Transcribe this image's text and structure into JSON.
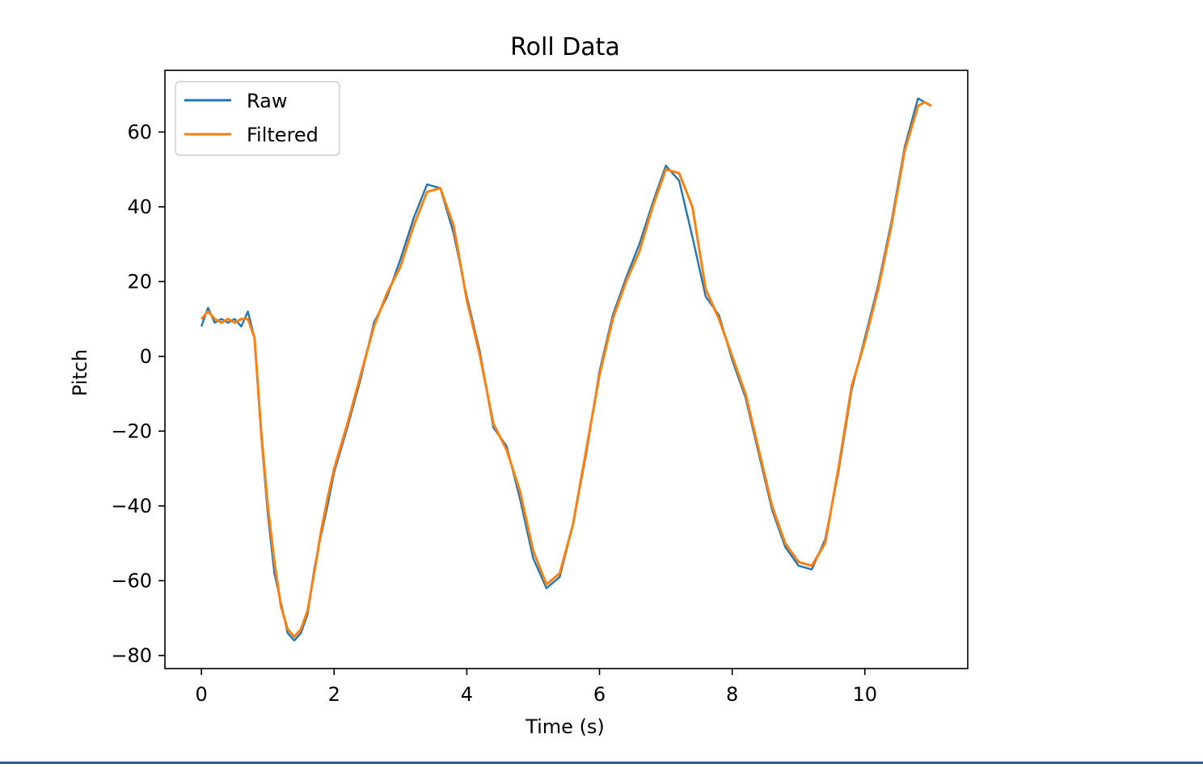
{
  "chart_data": {
    "type": "line",
    "title": "Roll Data",
    "xlabel": "Time (s)",
    "ylabel": "Pitch",
    "xlim": [
      -0.55,
      11.55
    ],
    "ylim": [
      -83.5,
      76.5
    ],
    "xticks": [
      0,
      2,
      4,
      6,
      8,
      10
    ],
    "yticks": [
      -80,
      -60,
      -40,
      -20,
      0,
      20,
      40,
      60
    ],
    "legend_position": "top-left",
    "grid": false,
    "series": [
      {
        "name": "Raw",
        "color": "#1f77b4"
      },
      {
        "name": "Filtered",
        "color": "#ff7f0e"
      }
    ],
    "x": [
      0.0,
      0.1,
      0.2,
      0.3,
      0.4,
      0.5,
      0.6,
      0.7,
      0.8,
      0.9,
      1.0,
      1.1,
      1.2,
      1.3,
      1.4,
      1.5,
      1.6,
      1.7,
      1.8,
      1.9,
      2.0,
      2.2,
      2.4,
      2.6,
      2.8,
      3.0,
      3.2,
      3.4,
      3.6,
      3.8,
      4.0,
      4.2,
      4.4,
      4.6,
      4.8,
      5.0,
      5.2,
      5.4,
      5.6,
      5.8,
      6.0,
      6.2,
      6.4,
      6.6,
      6.8,
      7.0,
      7.2,
      7.4,
      7.6,
      7.8,
      8.0,
      8.2,
      8.4,
      8.6,
      8.8,
      9.0,
      9.2,
      9.4,
      9.6,
      9.8,
      10.0,
      10.2,
      10.4,
      10.6,
      10.8,
      10.9,
      11.0
    ],
    "filtered": [
      10,
      12,
      10,
      9,
      10,
      9,
      10,
      10,
      5,
      -20,
      -40,
      -55,
      -67,
      -73,
      -75,
      -73,
      -68,
      -58,
      -47,
      -38,
      -30,
      -18,
      -5,
      8,
      17,
      24,
      35,
      44,
      45,
      35,
      15,
      0,
      -18,
      -25,
      -36,
      -52,
      -61,
      -58,
      -45,
      -25,
      -5,
      10,
      20,
      28,
      40,
      50,
      49,
      40,
      18,
      10,
      0,
      -10,
      -25,
      -40,
      -50,
      -55,
      -56,
      -50,
      -30,
      -8,
      4,
      18,
      35,
      55,
      67,
      68,
      67
    ],
    "raw": [
      8,
      13,
      9,
      10,
      9,
      10,
      8,
      12,
      5,
      -21,
      -42,
      -58,
      -66,
      -74,
      -76,
      -74,
      -69,
      -57,
      -48,
      -40,
      -31,
      -19,
      -6,
      9,
      16,
      26,
      37,
      46,
      45,
      33,
      16,
      1,
      -19,
      -24,
      -38,
      -54,
      -62,
      -59,
      -45,
      -26,
      -4,
      11,
      21,
      30,
      41,
      51,
      47,
      32,
      16,
      11,
      -1,
      -11,
      -26,
      -41,
      -51,
      -56,
      -57,
      -49,
      -31,
      -9,
      5,
      19,
      36,
      56,
      69,
      68,
      67
    ]
  }
}
